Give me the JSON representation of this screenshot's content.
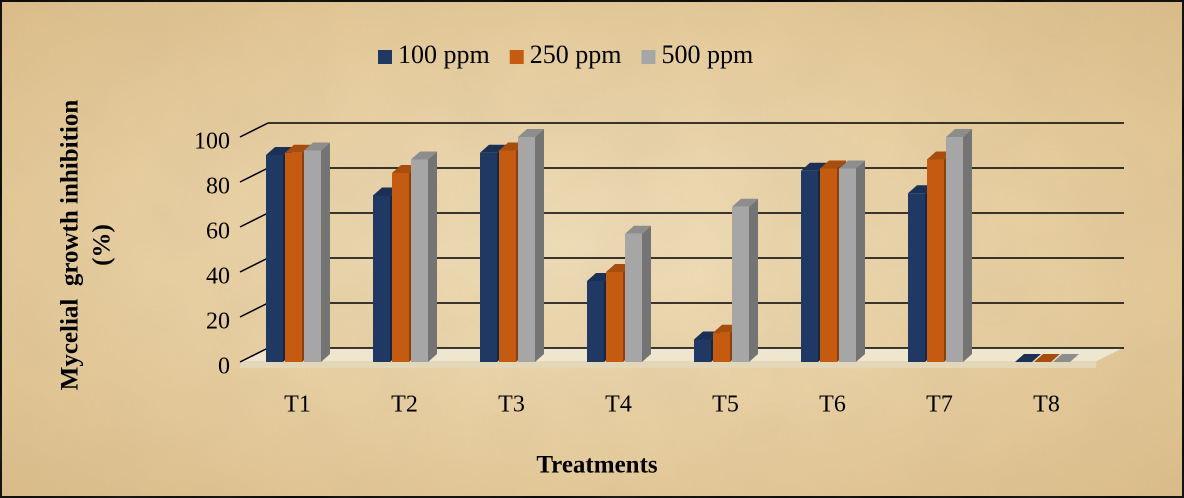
{
  "chart_data": {
    "type": "bar3d",
    "y_axis_label": [
      "Mycelial  growth inhibition",
      "(%)"
    ],
    "x_axis_label": "Treatments",
    "categories": [
      "T1",
      "T2",
      "T3",
      "T4",
      "T5",
      "T6",
      "T7",
      "T8"
    ],
    "series": [
      {
        "name": "100 ppm",
        "color": "#1f3864",
        "values": [
          92,
          74,
          93,
          36,
          10,
          85,
          75,
          0
        ]
      },
      {
        "name": "250 ppm",
        "color": "#c55a11",
        "values": [
          93,
          84,
          94,
          40,
          13,
          86,
          90,
          0
        ]
      },
      {
        "name": "500 ppm",
        "color": "#a6a6a6",
        "values": [
          94,
          90,
          100,
          57,
          69,
          86,
          100,
          0
        ]
      }
    ],
    "ylim": [
      0,
      100
    ],
    "yticks": [
      0,
      20,
      40,
      60,
      80,
      100
    ],
    "grid": true,
    "legend": "top"
  }
}
